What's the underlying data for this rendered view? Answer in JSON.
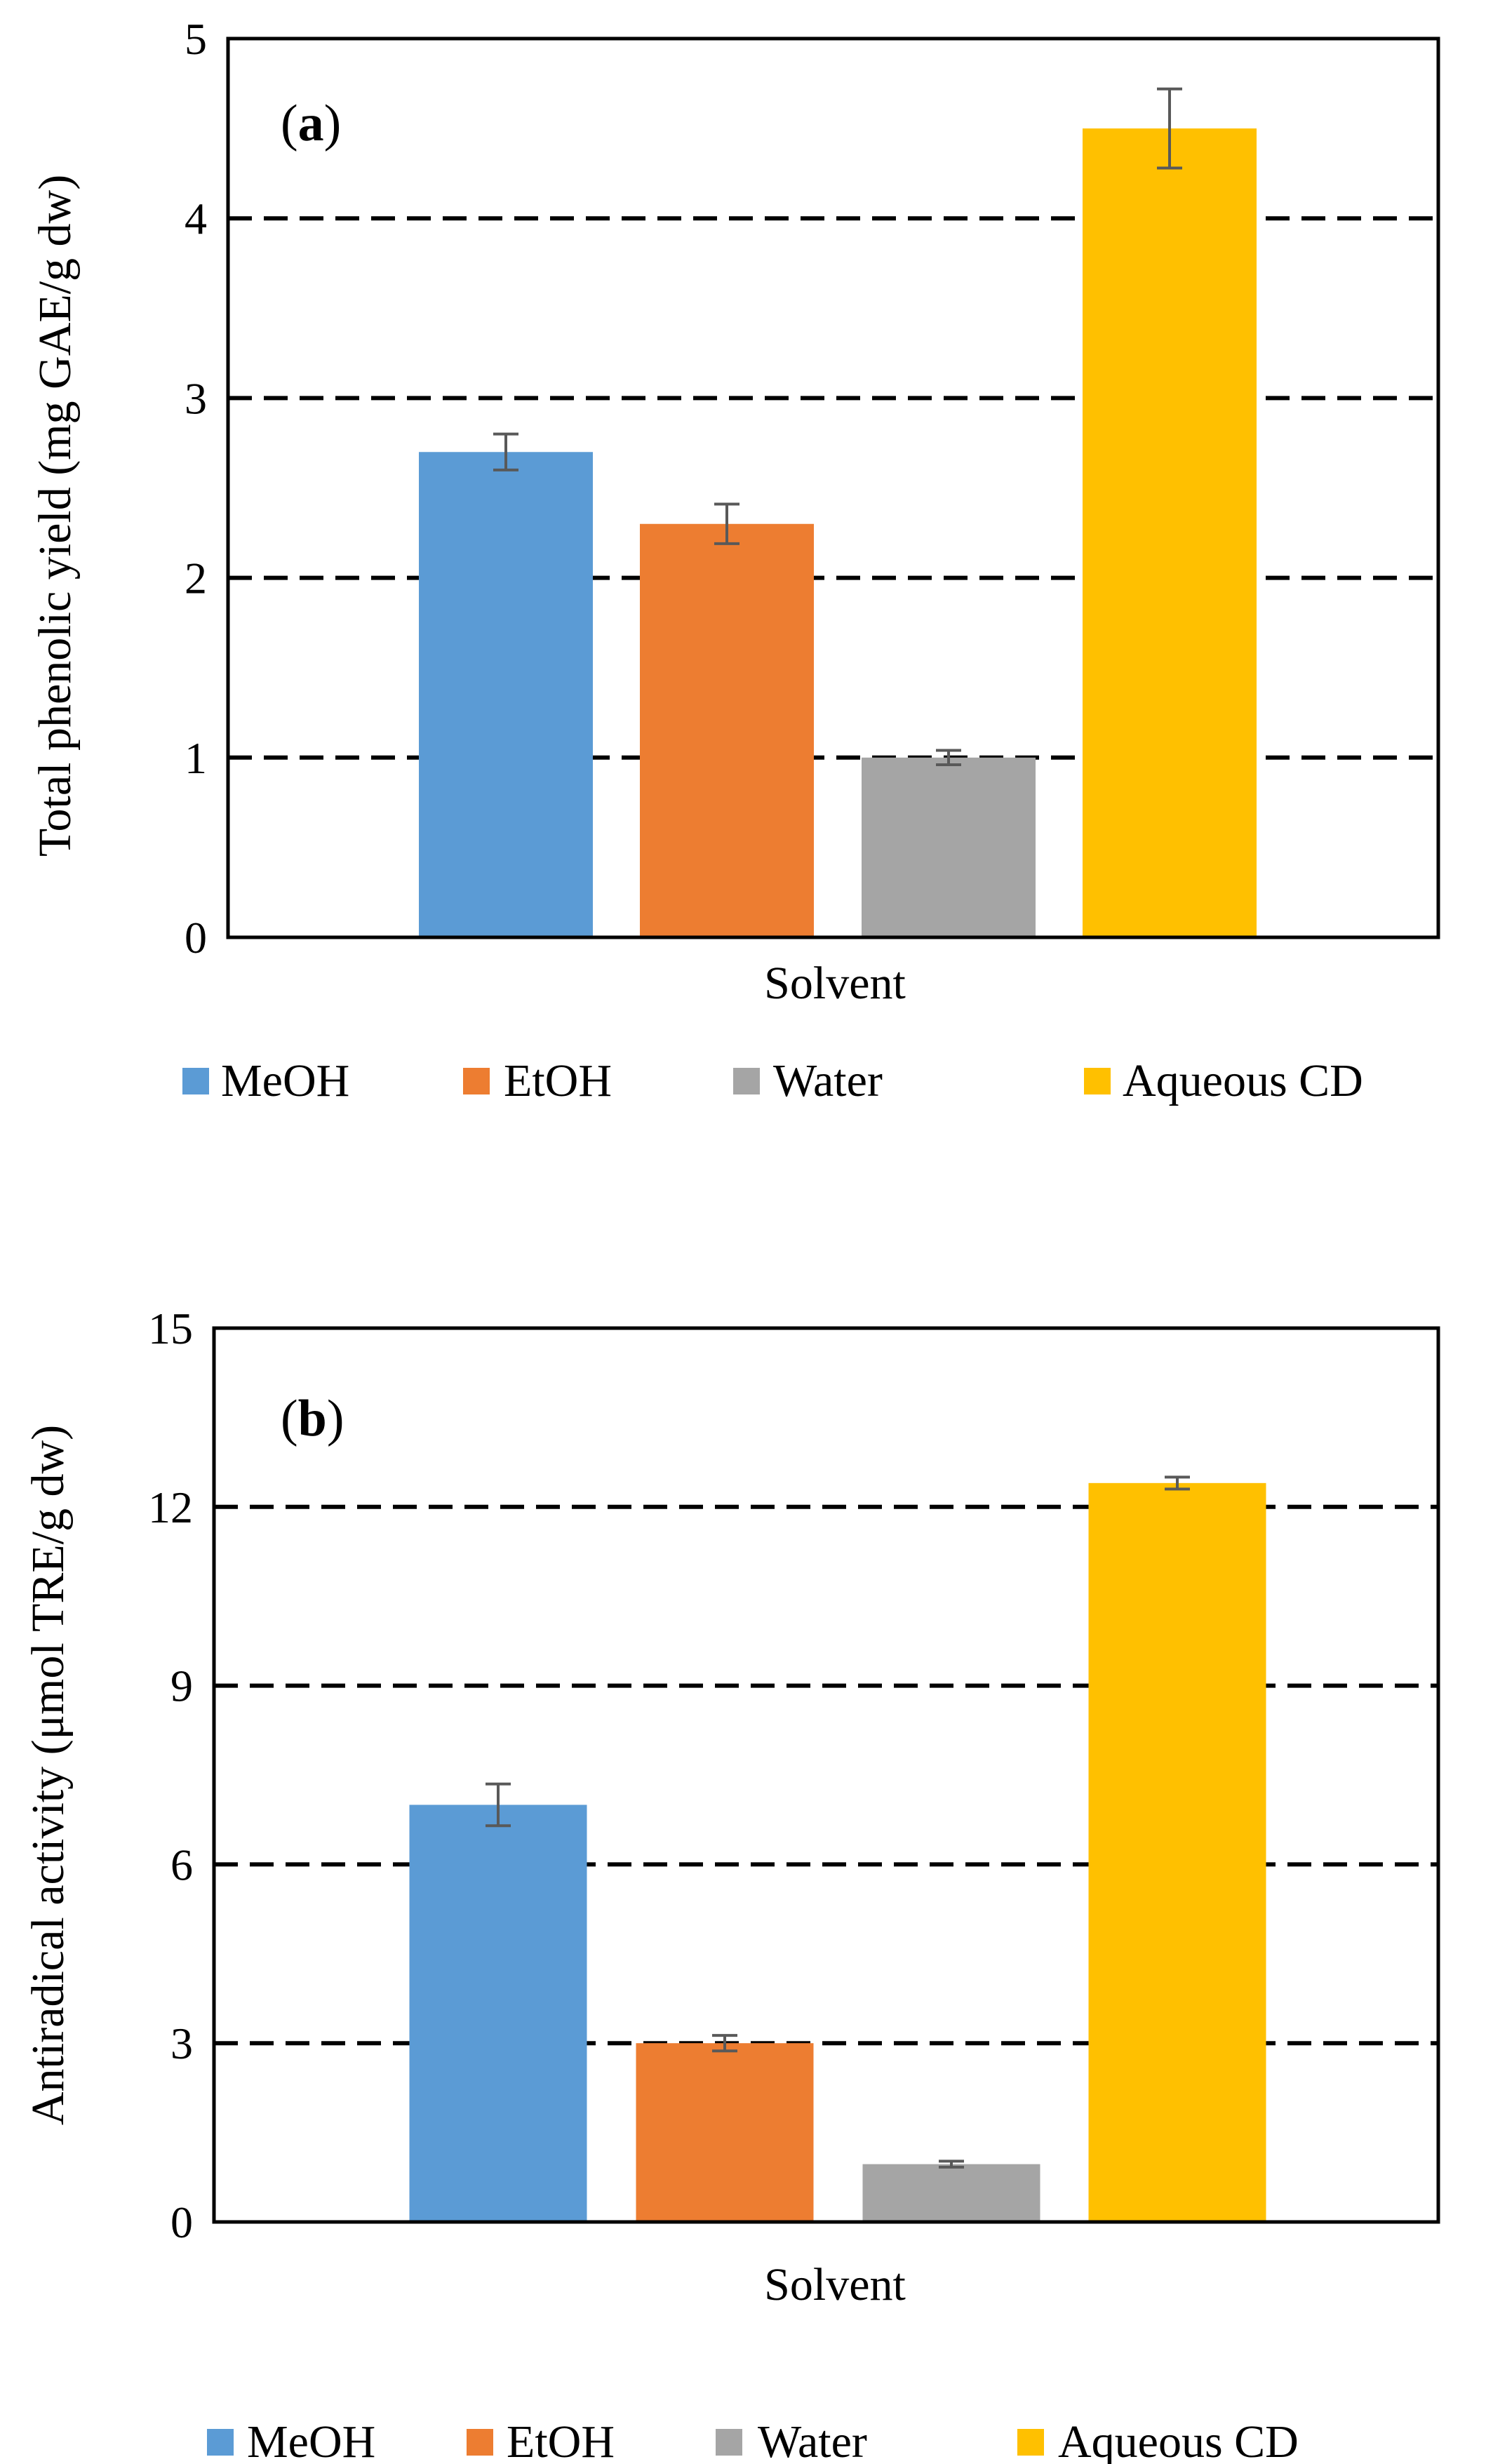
{
  "chart_data": [
    {
      "type": "bar",
      "panel_label": "a",
      "title": "",
      "ylabel": "Total phenolic yield (mg GAE/g dw)",
      "xlabel": "Solvent",
      "ylim": [
        0,
        5
      ],
      "yticks": [
        0,
        1,
        2,
        3,
        4,
        5
      ],
      "gridlines": [
        1,
        2,
        3,
        4
      ],
      "grid": "dashed",
      "legend_position": "bottom",
      "series": [
        {
          "name": "MeOH",
          "value": 2.7,
          "error": 0.1,
          "color": "#5B9BD5"
        },
        {
          "name": "EtOH",
          "value": 2.3,
          "error": 0.11,
          "color": "#ED7D31"
        },
        {
          "name": "Water",
          "value": 1.0,
          "error": 0.04,
          "color": "#A5A5A5"
        },
        {
          "name": "Aqueous CD",
          "value": 4.5,
          "error": 0.22,
          "color": "#FFC000"
        }
      ]
    },
    {
      "type": "bar",
      "panel_label": "b",
      "title": "",
      "ylabel": "Antiradical activity (μmol TRE/g dw)",
      "xlabel": "Solvent",
      "ylim": [
        0,
        15
      ],
      "yticks": [
        0,
        3,
        6,
        9,
        12,
        15
      ],
      "gridlines": [
        3,
        6,
        9,
        12
      ],
      "grid": "dashed",
      "legend_position": "bottom",
      "series": [
        {
          "name": "MeOH",
          "value": 7.0,
          "error": 0.35,
          "color": "#5B9BD5"
        },
        {
          "name": "EtOH",
          "value": 3.0,
          "error": 0.13,
          "color": "#ED7D31"
        },
        {
          "name": "Water",
          "value": 0.97,
          "error": 0.05,
          "color": "#A5A5A5"
        },
        {
          "name": "Aqueous CD",
          "value": 12.4,
          "error": 0.1,
          "color": "#FFC000"
        }
      ]
    }
  ]
}
